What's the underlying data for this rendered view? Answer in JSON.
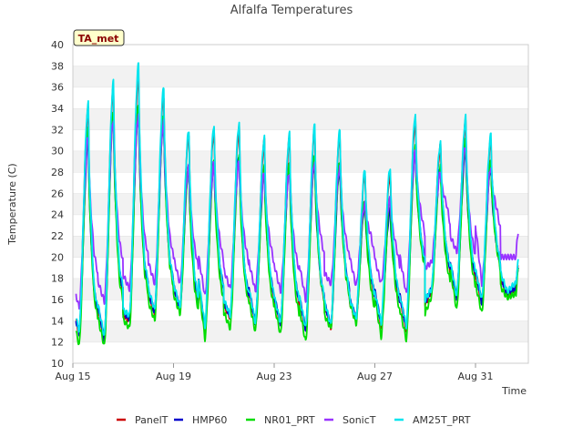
{
  "chart_data": {
    "type": "line",
    "title": "Alfalfa Temperatures",
    "xlabel": "Time",
    "ylabel": "Temperature (C)",
    "badge": "TA_met",
    "x_ticks": [
      "Aug 15",
      "Aug 19",
      "Aug 23",
      "Aug 27",
      "Aug 31"
    ],
    "x_tick_days": [
      0,
      4,
      8,
      12,
      16
    ],
    "xlim_days": [
      0,
      18.1
    ],
    "ylim": [
      10,
      40
    ],
    "y_ticks": [
      10,
      12,
      14,
      16,
      18,
      20,
      22,
      24,
      26,
      28,
      30,
      32,
      34,
      36,
      38,
      40
    ],
    "grid": "horizontal bands",
    "legend_position": "bottom",
    "days": [
      "Aug 15",
      "Aug 16",
      "Aug 17",
      "Aug 18",
      "Aug 19",
      "Aug 20",
      "Aug 21",
      "Aug 22",
      "Aug 23",
      "Aug 24",
      "Aug 25",
      "Aug 26",
      "Aug 27",
      "Aug 28",
      "Aug 29",
      "Aug 30",
      "Aug 31",
      "Sep 1"
    ],
    "series": [
      {
        "name": "PanelT",
        "color": "#cc0000",
        "daily_max": [
          34.0,
          36.0,
          37.2,
          35.2,
          31.5,
          32.0,
          32.2,
          31.0,
          31.2,
          32.0,
          31.5,
          27.8,
          27.8,
          33.0,
          30.5,
          32.8,
          31.0,
          17.0
        ],
        "daily_min": [
          12.8,
          12.0,
          14.0,
          14.5,
          15.0,
          13.0,
          14.3,
          13.5,
          13.5,
          13.0,
          13.3,
          14.0,
          13.5,
          13.0,
          16.8,
          16.0,
          15.5,
          16.5
        ]
      },
      {
        "name": "HMP60",
        "color": "#0000cc",
        "daily_max": [
          31.0,
          33.5,
          33.8,
          33.0,
          28.5,
          29.0,
          29.5,
          28.0,
          28.5,
          29.0,
          28.5,
          25.0,
          24.5,
          30.0,
          28.5,
          30.0,
          28.5,
          17.0
        ],
        "daily_min": [
          12.8,
          12.3,
          14.2,
          14.8,
          15.2,
          13.2,
          14.5,
          13.8,
          13.8,
          13.2,
          13.5,
          14.3,
          13.8,
          13.3,
          17.0,
          16.2,
          15.7,
          16.5
        ]
      },
      {
        "name": "NR01_PRT",
        "color": "#00dd00",
        "daily_max": [
          32.0,
          33.5,
          34.3,
          33.5,
          28.5,
          29.2,
          29.5,
          28.5,
          28.7,
          29.5,
          29.0,
          25.5,
          25.5,
          30.5,
          28.5,
          31.0,
          29.0,
          16.5
        ],
        "daily_min": [
          11.7,
          11.6,
          13.3,
          14.0,
          14.7,
          12.3,
          13.3,
          13.0,
          12.7,
          12.0,
          13.3,
          13.7,
          12.5,
          12.2,
          16.3,
          15.0,
          14.7,
          16.2
        ]
      },
      {
        "name": "SonicT",
        "color": "#9933ff",
        "daily_max": [
          31.5,
          33.0,
          33.5,
          32.8,
          28.5,
          28.8,
          29.0,
          28.0,
          28.0,
          29.0,
          28.5,
          25.0,
          25.5,
          30.0,
          28.0,
          30.5,
          28.5,
          20.0
        ],
        "daily_min": [
          15.2,
          15.8,
          17.0,
          17.5,
          17.5,
          16.3,
          17.0,
          16.8,
          16.8,
          16.0,
          17.5,
          17.3,
          17.5,
          16.5,
          19.5,
          20.5,
          17.5,
          20.0
        ]
      },
      {
        "name": "AM25T_PRT",
        "color": "#00e5ee",
        "daily_max": [
          34.5,
          36.5,
          38.2,
          36.0,
          32.0,
          32.5,
          32.7,
          31.3,
          31.6,
          32.4,
          32.0,
          28.3,
          28.5,
          33.5,
          30.8,
          33.2,
          31.5,
          17.5
        ],
        "daily_min": [
          13.0,
          12.5,
          14.5,
          15.0,
          15.3,
          13.5,
          14.5,
          13.8,
          13.8,
          13.3,
          13.6,
          14.2,
          13.8,
          13.5,
          17.0,
          16.3,
          16.0,
          16.8
        ]
      }
    ]
  }
}
